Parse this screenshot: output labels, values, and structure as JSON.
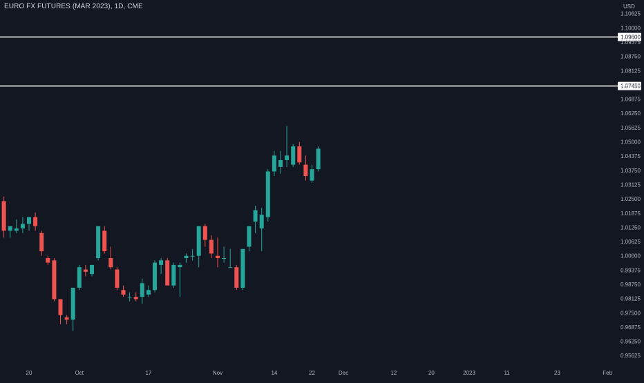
{
  "chart_data": {
    "type": "candlestick",
    "title": "EURO FX FUTURES (MAR 2023), 1D, CME",
    "currency": "USD",
    "colors": {
      "background": "#131722",
      "up": "#26a69a",
      "down": "#ef5350",
      "text": "#b2b5be",
      "grid": "#1c2030",
      "level_line": "#ffffff"
    },
    "grid": false,
    "y_ticks": [
      "1.10625",
      "1.10000",
      "1.09375",
      "1.08750",
      "1.08125",
      "1.07500",
      "1.06875",
      "1.06250",
      "1.05625",
      "1.05000",
      "1.04375",
      "1.03750",
      "1.03125",
      "1.02500",
      "1.01875",
      "1.01250",
      "1.00625",
      "1.00000",
      "0.99375",
      "0.98750",
      "0.98125",
      "0.97500",
      "0.96875",
      "0.96250",
      "0.95625"
    ],
    "ylim": [
      0.9545,
      1.1098
    ],
    "x_ticks": [
      {
        "label": "20",
        "index": 0
      },
      {
        "label": "Oct",
        "index": 8
      },
      {
        "label": "17",
        "index": 19
      },
      {
        "label": "Nov",
        "index": 30
      },
      {
        "label": "14",
        "index": 39
      },
      {
        "label": "22",
        "index": 45
      },
      {
        "label": "Dec",
        "index": 50
      },
      {
        "label": "12",
        "index": 58
      },
      {
        "label": "20",
        "index": 64
      },
      {
        "label": "2023",
        "index": 70
      },
      {
        "label": "11",
        "index": 76
      },
      {
        "label": "23",
        "index": 84
      },
      {
        "label": "Feb",
        "index": 92
      }
    ],
    "levels": [
      {
        "label": "1.09600",
        "value": 1.096
      },
      {
        "label": "1.07450",
        "value": 1.0745
      }
    ],
    "x_start_index": -4,
    "candles": [
      {
        "o": 1.024,
        "h": 1.026,
        "l": 1.008,
        "c": 1.011
      },
      {
        "o": 1.011,
        "h": 1.013,
        "l": 1.008,
        "c": 1.013
      },
      {
        "o": 1.011,
        "h": 1.016,
        "l": 1.01,
        "c": 1.012
      },
      {
        "o": 1.012,
        "h": 1.017,
        "l": 1.01,
        "c": 1.014
      },
      {
        "o": 1.014,
        "h": 1.017,
        "l": 1.011,
        "c": 1.017
      },
      {
        "o": 1.017,
        "h": 1.019,
        "l": 1.011,
        "c": 1.013
      },
      {
        "o": 1.01,
        "h": 1.011,
        "l": 1.0,
        "c": 1.002
      },
      {
        "o": 0.999,
        "h": 1.0,
        "l": 0.996,
        "c": 0.997
      },
      {
        "o": 0.998,
        "h": 0.999,
        "l": 0.98,
        "c": 0.981
      },
      {
        "o": 0.981,
        "h": 0.981,
        "l": 0.97,
        "c": 0.974
      },
      {
        "o": 0.973,
        "h": 0.974,
        "l": 0.97,
        "c": 0.972
      },
      {
        "o": 0.972,
        "h": 0.986,
        "l": 0.967,
        "c": 0.986
      },
      {
        "o": 0.986,
        "h": 0.996,
        "l": 0.985,
        "c": 0.995
      },
      {
        "o": 0.994,
        "h": 0.996,
        "l": 0.991,
        "c": 0.993
      },
      {
        "o": 0.992,
        "h": 0.996,
        "l": 0.991,
        "c": 0.996
      },
      {
        "o": 0.999,
        "h": 1.013,
        "l": 0.998,
        "c": 1.013
      },
      {
        "o": 1.011,
        "h": 1.013,
        "l": 1.001,
        "c": 1.002
      },
      {
        "o": 0.999,
        "h": 1.004,
        "l": 0.994,
        "c": 0.995
      },
      {
        "o": 0.994,
        "h": 0.995,
        "l": 0.985,
        "c": 0.986
      },
      {
        "o": 0.985,
        "h": 0.987,
        "l": 0.982,
        "c": 0.983
      },
      {
        "o": 0.982,
        "h": 0.984,
        "l": 0.98,
        "c": 0.982
      },
      {
        "o": 0.982,
        "h": 0.984,
        "l": 0.98,
        "c": 0.981
      },
      {
        "o": 0.982,
        "h": 0.99,
        "l": 0.979,
        "c": 0.988
      },
      {
        "o": 0.983,
        "h": 0.987,
        "l": 0.982,
        "c": 0.985
      },
      {
        "o": 0.985,
        "h": 0.998,
        "l": 0.984,
        "c": 0.997
      },
      {
        "o": 0.996,
        "h": 0.999,
        "l": 0.992,
        "c": 0.998
      },
      {
        "o": 0.998,
        "h": 0.999,
        "l": 0.987,
        "c": 0.987
      },
      {
        "o": 0.987,
        "h": 0.997,
        "l": 0.986,
        "c": 0.996
      },
      {
        "o": 0.995,
        "h": 0.997,
        "l": 0.982,
        "c": 0.996
      },
      {
        "o": 0.999,
        "h": 1.001,
        "l": 0.997,
        "c": 1.0
      },
      {
        "o": 1.0,
        "h": 1.003,
        "l": 0.998,
        "c": 1.0
      },
      {
        "o": 1.0,
        "h": 1.013,
        "l": 0.995,
        "c": 1.013
      },
      {
        "o": 1.013,
        "h": 1.014,
        "l": 1.004,
        "c": 1.007
      },
      {
        "o": 1.007,
        "h": 1.009,
        "l": 0.999,
        "c": 1.001
      },
      {
        "o": 1.0,
        "h": 1.008,
        "l": 0.995,
        "c": 0.999
      },
      {
        "o": 0.999,
        "h": 1.004,
        "l": 0.997,
        "c": 0.999
      },
      {
        "o": 0.995,
        "h": 1.003,
        "l": 0.995,
        "c": 0.995
      },
      {
        "o": 0.995,
        "h": 0.996,
        "l": 0.985,
        "c": 0.986
      },
      {
        "o": 0.986,
        "h": 1.003,
        "l": 0.985,
        "c": 1.003
      },
      {
        "o": 1.004,
        "h": 1.013,
        "l": 1.002,
        "c": 1.013
      },
      {
        "o": 1.015,
        "h": 1.022,
        "l": 1.01,
        "c": 1.02
      },
      {
        "o": 1.012,
        "h": 1.021,
        "l": 1.002,
        "c": 1.018
      },
      {
        "o": 1.017,
        "h": 1.038,
        "l": 1.015,
        "c": 1.037
      },
      {
        "o": 1.037,
        "h": 1.046,
        "l": 1.035,
        "c": 1.044
      },
      {
        "o": 1.039,
        "h": 1.046,
        "l": 1.036,
        "c": 1.042
      },
      {
        "o": 1.042,
        "h": 1.057,
        "l": 1.039,
        "c": 1.044
      },
      {
        "o": 1.04,
        "h": 1.049,
        "l": 1.039,
        "c": 1.048
      },
      {
        "o": 1.048,
        "h": 1.05,
        "l": 1.04,
        "c": 1.041
      },
      {
        "o": 1.04,
        "h": 1.044,
        "l": 1.033,
        "c": 1.035
      },
      {
        "o": 1.033,
        "h": 1.04,
        "l": 1.032,
        "c": 1.038
      },
      {
        "o": 1.038,
        "h": 1.048,
        "l": 1.037,
        "c": 1.047
      }
    ]
  }
}
